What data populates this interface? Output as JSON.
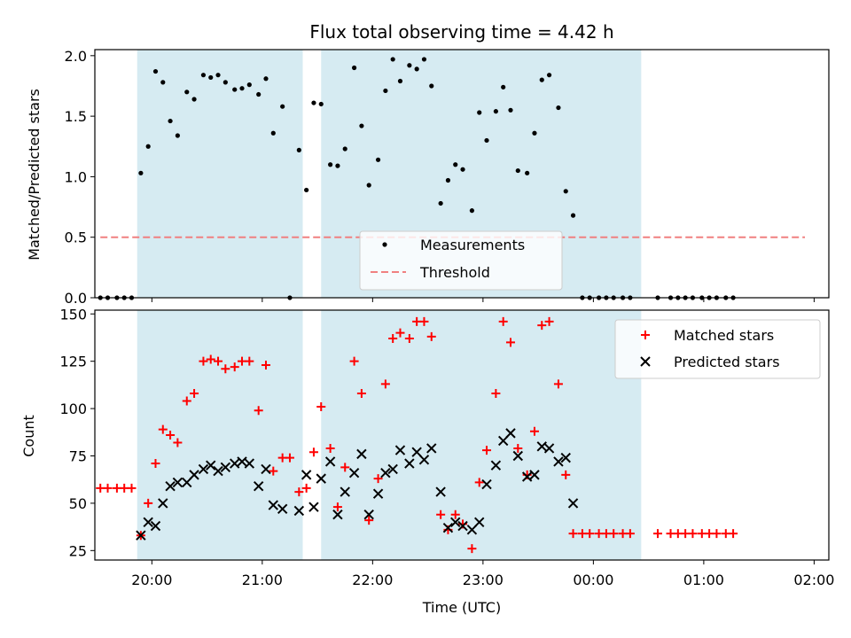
{
  "chart_data": [
    {
      "type": "scatter",
      "title": "Flux total observing time = 4.42 h",
      "xlabel": "",
      "ylabel": "Matched/Predicted stars",
      "ylim": [
        0,
        2.05
      ],
      "yticks": [
        "0.0",
        "0.5",
        "1.0",
        "1.5",
        "2.0"
      ],
      "xlim": [
        "19:29",
        "02:08"
      ],
      "xticks": [
        "20:00",
        "21:00",
        "22:00",
        "23:00",
        "00:00",
        "01:00",
        "02:00"
      ],
      "shaded_intervals": [
        [
          "19:52",
          "21:22"
        ],
        [
          "21:32",
          "00:26"
        ]
      ],
      "threshold": {
        "name": "Threshold",
        "value": 0.5,
        "x_range": [
          "19:32",
          "01:55"
        ],
        "color": "#f08080"
      },
      "legend_position": "lower-center",
      "series": [
        {
          "name": "Measurements",
          "color": "#000000",
          "points": [
            [
              "19:32",
              0
            ],
            [
              "19:36",
              0
            ],
            [
              "19:41",
              0
            ],
            [
              "19:45",
              0
            ],
            [
              "19:49",
              0
            ],
            [
              "19:54",
              1.03
            ],
            [
              "19:58",
              1.25
            ],
            [
              "20:02",
              1.87
            ],
            [
              "20:06",
              1.78
            ],
            [
              "20:10",
              1.46
            ],
            [
              "20:14",
              1.34
            ],
            [
              "20:19",
              1.7
            ],
            [
              "20:23",
              1.64
            ],
            [
              "20:28",
              1.84
            ],
            [
              "20:32",
              1.82
            ],
            [
              "20:36",
              1.84
            ],
            [
              "20:40",
              1.78
            ],
            [
              "20:45",
              1.72
            ],
            [
              "20:49",
              1.73
            ],
            [
              "20:53",
              1.76
            ],
            [
              "20:58",
              1.68
            ],
            [
              "21:02",
              1.81
            ],
            [
              "21:06",
              1.36
            ],
            [
              "21:11",
              1.58
            ],
            [
              "21:15",
              0
            ],
            [
              "21:20",
              1.22
            ],
            [
              "21:24",
              0.89
            ],
            [
              "21:28",
              1.61
            ],
            [
              "21:32",
              1.6
            ],
            [
              "21:37",
              1.1
            ],
            [
              "21:41",
              1.09
            ],
            [
              "21:45",
              1.23
            ],
            [
              "21:50",
              1.9
            ],
            [
              "21:54",
              1.42
            ],
            [
              "21:58",
              0.93
            ],
            [
              "22:03",
              1.14
            ],
            [
              "22:07",
              1.71
            ],
            [
              "22:11",
              1.97
            ],
            [
              "22:15",
              1.79
            ],
            [
              "22:20",
              1.92
            ],
            [
              "22:24",
              1.89
            ],
            [
              "22:28",
              1.97
            ],
            [
              "22:32",
              1.75
            ],
            [
              "22:37",
              0.78
            ],
            [
              "22:41",
              0.97
            ],
            [
              "22:45",
              1.1
            ],
            [
              "22:49",
              1.06
            ],
            [
              "22:54",
              0.72
            ],
            [
              "22:58",
              1.53
            ],
            [
              "23:02",
              1.3
            ],
            [
              "23:07",
              1.54
            ],
            [
              "23:11",
              1.74
            ],
            [
              "23:15",
              1.55
            ],
            [
              "23:19",
              1.05
            ],
            [
              "23:24",
              1.03
            ],
            [
              "23:28",
              1.36
            ],
            [
              "23:32",
              1.8
            ],
            [
              "23:36",
              1.84
            ],
            [
              "23:41",
              1.57
            ],
            [
              "23:45",
              0.88
            ],
            [
              "23:49",
              0.68
            ],
            [
              "23:54",
              0
            ],
            [
              "23:58",
              0
            ],
            [
              "00:03",
              0
            ],
            [
              "00:07",
              0
            ],
            [
              "00:11",
              0
            ],
            [
              "00:16",
              0
            ],
            [
              "00:20",
              0
            ],
            [
              "00:35",
              0
            ],
            [
              "00:42",
              0
            ],
            [
              "00:46",
              0
            ],
            [
              "00:50",
              0
            ],
            [
              "00:54",
              0
            ],
            [
              "00:59",
              0
            ],
            [
              "01:03",
              0
            ],
            [
              "01:07",
              0
            ],
            [
              "01:12",
              0
            ],
            [
              "01:16",
              0
            ]
          ]
        }
      ]
    },
    {
      "type": "scatter",
      "title": "",
      "xlabel": "Time (UTC)",
      "ylabel": "Count",
      "ylim": [
        20,
        152
      ],
      "yticks": [
        "25",
        "50",
        "75",
        "100",
        "125",
        "150"
      ],
      "xlim": [
        "19:29",
        "02:08"
      ],
      "xticks": [
        "20:00",
        "21:00",
        "22:00",
        "23:00",
        "00:00",
        "01:00",
        "02:00"
      ],
      "shaded_intervals": [
        [
          "19:52",
          "21:22"
        ],
        [
          "21:32",
          "00:26"
        ]
      ],
      "legend_position": "upper-right",
      "series": [
        {
          "name": "Matched stars",
          "marker": "plus",
          "color": "#ff0000",
          "points": [
            [
              "19:32",
              58
            ],
            [
              "19:36",
              58
            ],
            [
              "19:41",
              58
            ],
            [
              "19:45",
              58
            ],
            [
              "19:49",
              58
            ],
            [
              "19:54",
              33
            ],
            [
              "19:58",
              50
            ],
            [
              "20:02",
              71
            ],
            [
              "20:06",
              89
            ],
            [
              "20:10",
              86
            ],
            [
              "20:14",
              82
            ],
            [
              "20:19",
              104
            ],
            [
              "20:23",
              108
            ],
            [
              "20:28",
              125
            ],
            [
              "20:32",
              126
            ],
            [
              "20:36",
              125
            ],
            [
              "20:40",
              121
            ],
            [
              "20:45",
              122
            ],
            [
              "20:49",
              125
            ],
            [
              "20:53",
              125
            ],
            [
              "20:58",
              99
            ],
            [
              "21:02",
              123
            ],
            [
              "21:06",
              67
            ],
            [
              "21:11",
              74
            ],
            [
              "21:15",
              74
            ],
            [
              "21:20",
              56
            ],
            [
              "21:24",
              58
            ],
            [
              "21:28",
              77
            ],
            [
              "21:32",
              101
            ],
            [
              "21:37",
              79
            ],
            [
              "21:41",
              48
            ],
            [
              "21:45",
              69
            ],
            [
              "21:50",
              125
            ],
            [
              "21:54",
              108
            ],
            [
              "21:58",
              41
            ],
            [
              "22:03",
              63
            ],
            [
              "22:07",
              113
            ],
            [
              "22:11",
              137
            ],
            [
              "22:15",
              140
            ],
            [
              "22:20",
              137
            ],
            [
              "22:24",
              146
            ],
            [
              "22:28",
              146
            ],
            [
              "22:32",
              138
            ],
            [
              "22:37",
              44
            ],
            [
              "22:41",
              36
            ],
            [
              "22:45",
              44
            ],
            [
              "22:49",
              39
            ],
            [
              "22:54",
              26
            ],
            [
              "22:58",
              61
            ],
            [
              "23:02",
              78
            ],
            [
              "23:07",
              108
            ],
            [
              "23:11",
              146
            ],
            [
              "23:15",
              135
            ],
            [
              "23:19",
              79
            ],
            [
              "23:24",
              65
            ],
            [
              "23:28",
              88
            ],
            [
              "23:32",
              144
            ],
            [
              "23:36",
              146
            ],
            [
              "23:41",
              113
            ],
            [
              "23:45",
              65
            ],
            [
              "23:49",
              34
            ],
            [
              "23:54",
              34
            ],
            [
              "23:58",
              34
            ],
            [
              "00:03",
              34
            ],
            [
              "00:07",
              34
            ],
            [
              "00:11",
              34
            ],
            [
              "00:16",
              34
            ],
            [
              "00:20",
              34
            ],
            [
              "00:35",
              34
            ],
            [
              "00:42",
              34
            ],
            [
              "00:46",
              34
            ],
            [
              "00:50",
              34
            ],
            [
              "00:54",
              34
            ],
            [
              "00:59",
              34
            ],
            [
              "01:03",
              34
            ],
            [
              "01:07",
              34
            ],
            [
              "01:12",
              34
            ],
            [
              "01:16",
              34
            ]
          ]
        },
        {
          "name": "Predicted stars",
          "marker": "x",
          "color": "#000000",
          "points": [
            [
              "19:54",
              33
            ],
            [
              "19:58",
              40
            ],
            [
              "20:02",
              38
            ],
            [
              "20:06",
              50
            ],
            [
              "20:10",
              59
            ],
            [
              "20:14",
              61
            ],
            [
              "20:19",
              61
            ],
            [
              "20:23",
              65
            ],
            [
              "20:28",
              68
            ],
            [
              "20:32",
              70
            ],
            [
              "20:36",
              67
            ],
            [
              "20:40",
              69
            ],
            [
              "20:45",
              71
            ],
            [
              "20:49",
              72
            ],
            [
              "20:53",
              71
            ],
            [
              "20:58",
              59
            ],
            [
              "21:02",
              68
            ],
            [
              "21:06",
              49
            ],
            [
              "21:11",
              47
            ],
            [
              "21:20",
              46
            ],
            [
              "21:24",
              65
            ],
            [
              "21:28",
              48
            ],
            [
              "21:32",
              63
            ],
            [
              "21:37",
              72
            ],
            [
              "21:41",
              44
            ],
            [
              "21:45",
              56
            ],
            [
              "21:50",
              66
            ],
            [
              "21:54",
              76
            ],
            [
              "21:58",
              44
            ],
            [
              "22:03",
              55
            ],
            [
              "22:07",
              66
            ],
            [
              "22:11",
              68
            ],
            [
              "22:15",
              78
            ],
            [
              "22:20",
              71
            ],
            [
              "22:24",
              77
            ],
            [
              "22:28",
              73
            ],
            [
              "22:32",
              79
            ],
            [
              "22:37",
              56
            ],
            [
              "22:41",
              37
            ],
            [
              "22:45",
              40
            ],
            [
              "22:49",
              38
            ],
            [
              "22:54",
              36
            ],
            [
              "22:58",
              40
            ],
            [
              "23:02",
              60
            ],
            [
              "23:07",
              70
            ],
            [
              "23:11",
              83
            ],
            [
              "23:15",
              87
            ],
            [
              "23:19",
              75
            ],
            [
              "23:24",
              64
            ],
            [
              "23:28",
              65
            ],
            [
              "23:32",
              80
            ],
            [
              "23:36",
              79
            ],
            [
              "23:41",
              72
            ],
            [
              "23:45",
              74
            ],
            [
              "23:49",
              50
            ]
          ]
        }
      ]
    }
  ]
}
